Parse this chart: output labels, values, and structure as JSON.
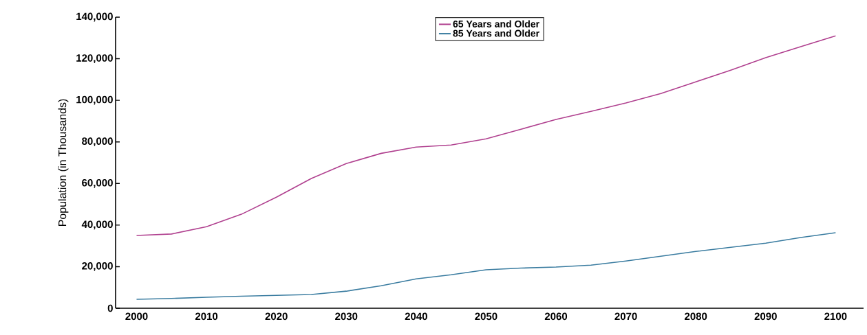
{
  "chart_data": {
    "type": "line",
    "ylabel": "Population (in Thousands)",
    "x": [
      2000,
      2005,
      2010,
      2015,
      2020,
      2025,
      2030,
      2035,
      2040,
      2045,
      2050,
      2055,
      2060,
      2065,
      2070,
      2075,
      2080,
      2085,
      2090,
      2095,
      2100
    ],
    "series": [
      {
        "name": "65 Years and Older",
        "color": "#b0408f",
        "values": [
          35000,
          35700,
          39200,
          45200,
          53400,
          62400,
          69600,
          74500,
          77500,
          78500,
          81500,
          86100,
          90800,
          94700,
          98700,
          103300,
          108900,
          114500,
          120500,
          125800,
          131000
        ]
      },
      {
        "name": "85 Years and Older",
        "color": "#3a7ca0",
        "values": [
          4300,
          4700,
          5300,
          5800,
          6200,
          6600,
          8200,
          10800,
          14100,
          16100,
          18500,
          19300,
          19800,
          20700,
          22700,
          25000,
          27300,
          29300,
          31300,
          34000,
          36300
        ]
      }
    ],
    "xlim": [
      1997,
      2104
    ],
    "xticks": [
      2000,
      2010,
      2020,
      2030,
      2040,
      2050,
      2060,
      2070,
      2080,
      2090,
      2100
    ],
    "ylim": [
      0,
      140000
    ],
    "yticks": [
      {
        "value": 0,
        "label": "0"
      },
      {
        "value": 20000,
        "label": "20,000"
      },
      {
        "value": 40000,
        "label": "40,000"
      },
      {
        "value": 60000,
        "label": "60,000"
      },
      {
        "value": 80000,
        "label": "80,000"
      },
      {
        "value": 100000,
        "label": "100,000"
      },
      {
        "value": 120000,
        "label": "120,000"
      },
      {
        "value": 140000,
        "label": "140,000"
      }
    ],
    "grid": false,
    "legend": "top",
    "marker": "none",
    "line_style": "solid"
  }
}
